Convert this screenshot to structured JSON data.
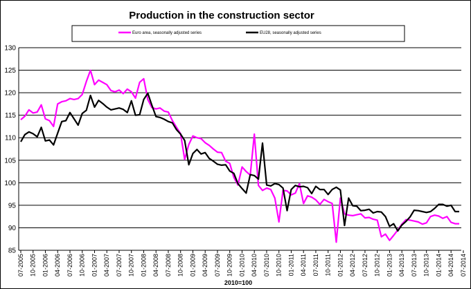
{
  "chart_data": {
    "type": "line",
    "title": "Production in the construction sector",
    "xlabel": "2010=100",
    "ylabel": "",
    "ylim": [
      85,
      130
    ],
    "yticks": [
      85,
      90,
      95,
      100,
      105,
      110,
      115,
      120,
      125,
      130
    ],
    "grid": "horizontal",
    "legend_position": "top",
    "x_start": "07-2005",
    "x_end": "07-2014",
    "xtick_labels": [
      "07-2005",
      "10-2005",
      "01-2006",
      "04-2006",
      "07-2006",
      "10-2006",
      "01-2007",
      "04-2007",
      "07-2007",
      "10-2007",
      "01-2008",
      "04-2008",
      "07-2008",
      "10-2008",
      "01-2009",
      "04-2009",
      "07-2009",
      "10-2009",
      "01-2010",
      "04-2010",
      "07-2010",
      "10-2010",
      "01-2011",
      "04-2011",
      "07-2011",
      "10-2011",
      "01-2012",
      "04-2012",
      "07-2012",
      "10-2012",
      "01-2013",
      "04-2013",
      "07-2013",
      "10-2013",
      "01-2014",
      "04-2014",
      "07-2014"
    ],
    "series": [
      {
        "name": "Euro area, seasonally adjusted series",
        "color": "#ff00ff",
        "values": [
          114,
          114.8,
          116.2,
          115.5,
          115.7,
          117.3,
          114.2,
          113.8,
          112.5,
          117.5,
          118,
          118.2,
          118.7,
          118.5,
          118.7,
          119.6,
          122.5,
          125,
          121.8,
          122.8,
          122.3,
          121.8,
          120.5,
          120.2,
          120.6,
          119.8,
          120.8,
          120.2,
          118.8,
          122.3,
          123.1,
          118.5,
          116.7,
          116.4,
          116.6,
          115.9,
          115.7,
          113.8,
          112.3,
          110.9,
          105.2,
          108.5,
          110.4,
          110,
          109.8,
          108.9,
          108.3,
          107.5,
          106.8,
          106.7,
          104.8,
          104.3,
          101.2,
          99.5,
          103.5,
          102.5,
          101.7,
          110.8,
          99.4,
          98.3,
          98.8,
          98.5,
          96.6,
          91.3,
          98.3,
          98.2,
          97.3,
          97.7,
          99.8,
          95.4,
          97.1,
          96.8,
          96.2,
          95.2,
          96.3,
          95.8,
          95.4,
          86.8,
          96.6,
          93.1,
          92.8,
          92.7,
          92.9,
          93.1,
          92.2,
          92.3,
          91.9,
          91.7,
          88,
          88.6,
          87.2,
          88.3,
          89.5,
          90.8,
          91.8,
          91.7,
          91.5,
          91.3,
          90.8,
          91.1,
          92.5,
          92.8,
          92.6,
          92.1,
          92.5,
          91.2,
          90.9,
          90.9
        ]
      },
      {
        "name": "EU28, seasonally adjusted series",
        "color": "#000000",
        "values": [
          109.1,
          110.7,
          111.3,
          110.9,
          110.2,
          112.3,
          109.3,
          109.5,
          108.4,
          111,
          113.6,
          113.8,
          115.6,
          114.2,
          112.8,
          115.4,
          116.1,
          119.4,
          116.8,
          118.3,
          117.6,
          116.8,
          116.2,
          116.4,
          116.6,
          116.3,
          115.6,
          118.2,
          115,
          115.1,
          118.5,
          119.9,
          117.2,
          114.7,
          114.5,
          114.1,
          113.6,
          113.3,
          111.8,
          110.8,
          109.4,
          104,
          106.5,
          107.4,
          106.4,
          106.7,
          105.4,
          104.8,
          104.1,
          103.9,
          104,
          102.6,
          102.1,
          99.8,
          98.7,
          97.7,
          101.8,
          101.6,
          100.8,
          108.8,
          99.5,
          99.3,
          99.8,
          99.6,
          98.8,
          93.8,
          98.5,
          99.4,
          99.1,
          99.2,
          98.9,
          97.6,
          99.2,
          98.5,
          98.5,
          97.4,
          98.5,
          99,
          98.4,
          90.5,
          96.6,
          94.9,
          94.8,
          93.8,
          93.9,
          94.1,
          93.3,
          93.6,
          93.5,
          92.5,
          90.3,
          90.9,
          89.3,
          90.6,
          91.4,
          92.4,
          93.9,
          93.8,
          93.6,
          93.4,
          93.6,
          94.3,
          95.2,
          95.2,
          94.8,
          95,
          93.6,
          93.6
        ]
      }
    ]
  }
}
